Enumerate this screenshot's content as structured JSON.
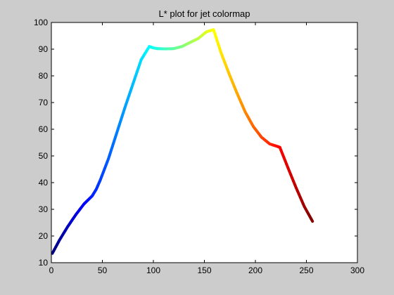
{
  "chart_data": {
    "type": "line",
    "title": "L* plot for jet colormap",
    "xlabel": "",
    "ylabel": "",
    "xlim": [
      0,
      300
    ],
    "ylim": [
      10,
      100
    ],
    "xticks": [
      0,
      50,
      100,
      150,
      200,
      250,
      300
    ],
    "yticks": [
      10,
      20,
      30,
      40,
      50,
      60,
      70,
      80,
      90,
      100
    ],
    "grid": false,
    "colormap": "jet",
    "series": [
      {
        "name": "L*",
        "x": [
          1,
          8,
          16,
          24,
          32,
          36,
          40,
          44,
          48,
          56,
          64,
          72,
          80,
          88,
          96,
          100,
          104,
          112,
          120,
          128,
          136,
          144,
          152,
          159,
          166,
          174,
          182,
          190,
          198,
          206,
          214,
          222,
          224,
          232,
          240,
          248,
          256
        ],
        "y": [
          13.5,
          18.5,
          23.5,
          28,
          32,
          33.5,
          35,
          37.5,
          41,
          49,
          58.5,
          68,
          77,
          86,
          91,
          90.5,
          90.2,
          90.1,
          90.2,
          91,
          92.5,
          94,
          96.5,
          97.3,
          89,
          81,
          73.5,
          66.5,
          61,
          57,
          54.5,
          53.5,
          53.2,
          45.5,
          38,
          31,
          25.5
        ]
      }
    ]
  }
}
